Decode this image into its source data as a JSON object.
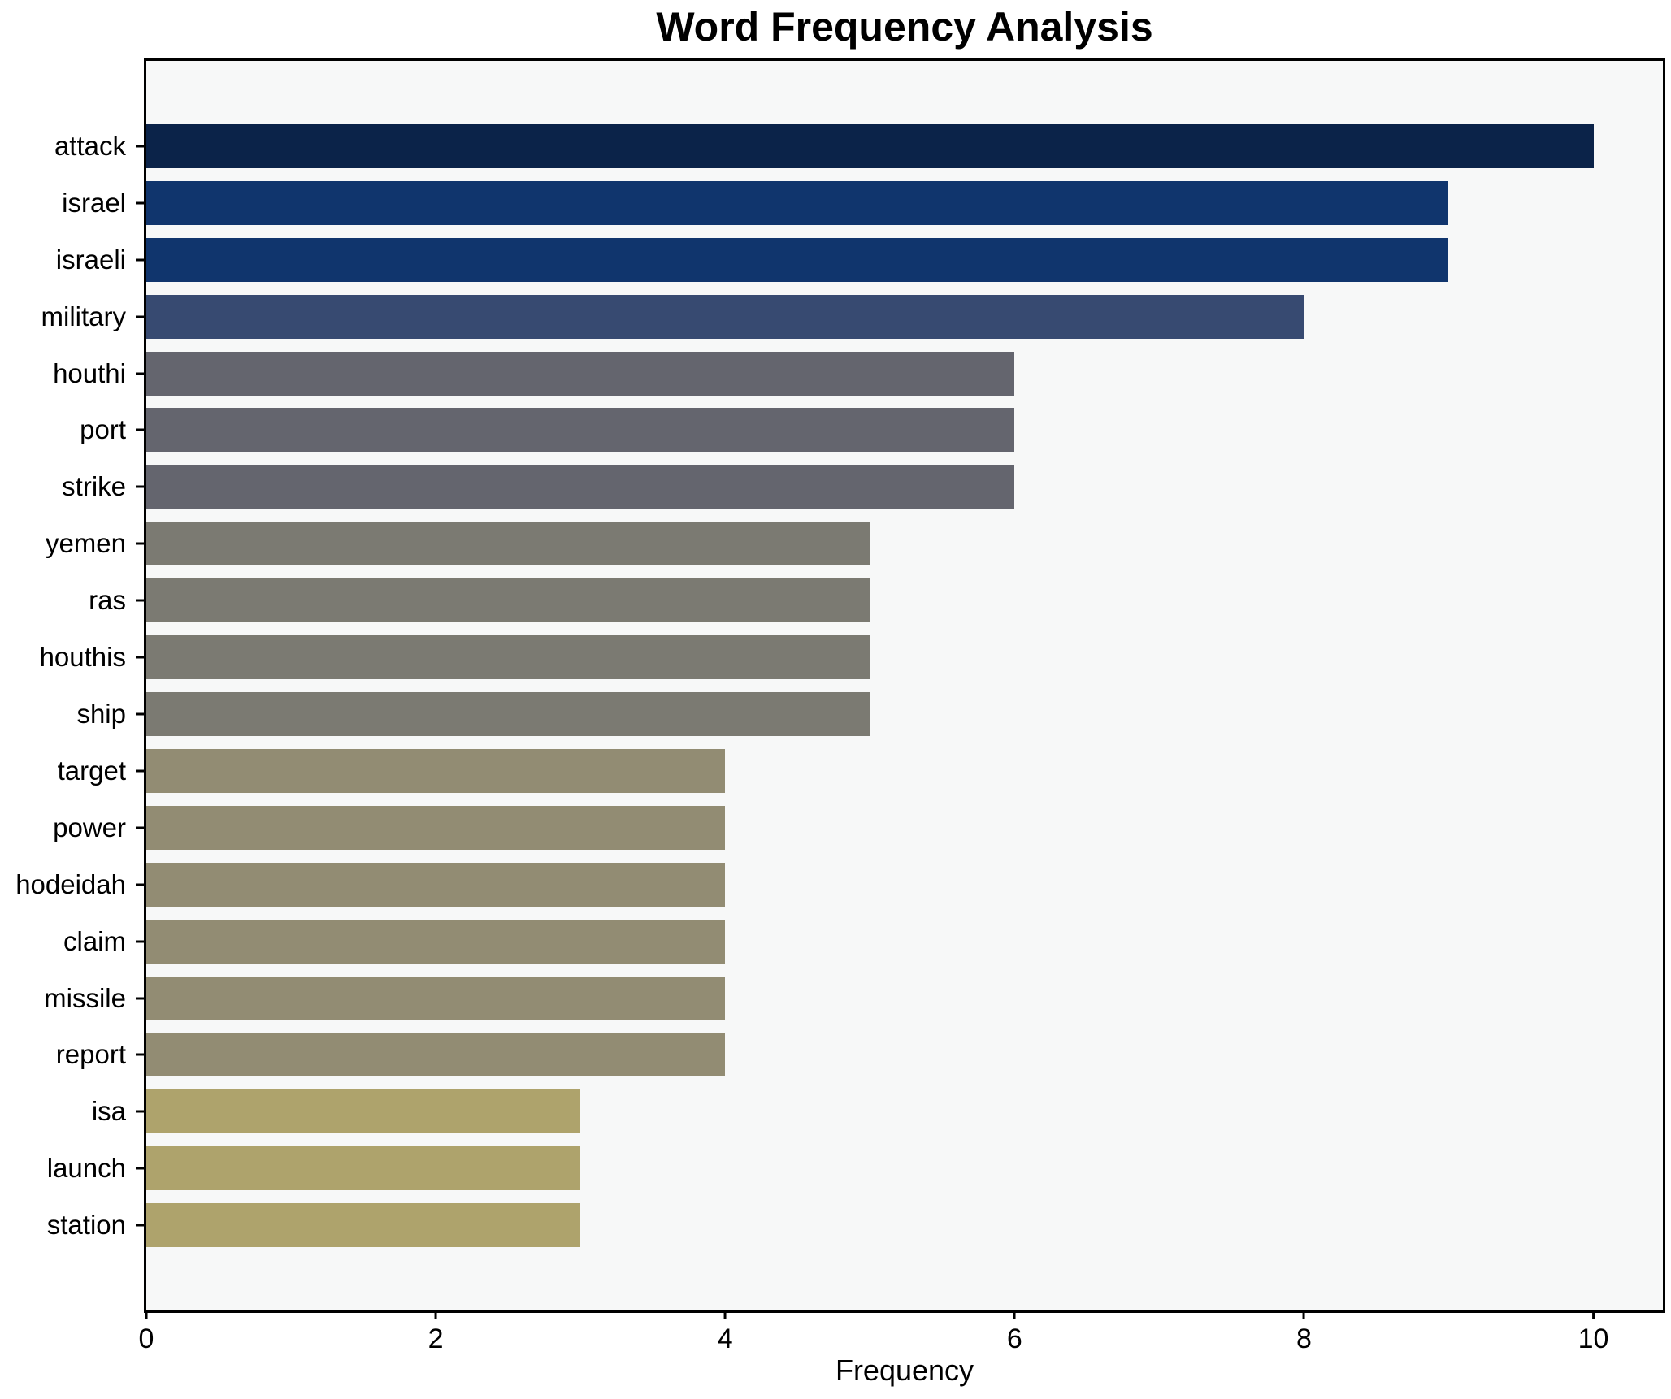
{
  "title": "Word Frequency Analysis",
  "chart_data": {
    "type": "bar",
    "orientation": "horizontal",
    "title": "Word Frequency Analysis",
    "xlabel": "Frequency",
    "ylabel": "",
    "categories": [
      "attack",
      "israel",
      "israeli",
      "military",
      "houthi",
      "port",
      "strike",
      "yemen",
      "ras",
      "houthis",
      "ship",
      "target",
      "power",
      "hodeidah",
      "claim",
      "missile",
      "report",
      "isa",
      "launch",
      "station"
    ],
    "values": [
      10,
      9,
      9,
      8,
      6,
      6,
      6,
      5,
      5,
      5,
      5,
      4,
      4,
      4,
      4,
      4,
      4,
      3,
      3,
      3
    ],
    "bar_colors": [
      "#0b2349",
      "#10356d",
      "#10356d",
      "#374a71",
      "#64656e",
      "#64656e",
      "#64656e",
      "#7b7a72",
      "#7b7a72",
      "#7b7a72",
      "#7b7a72",
      "#928c73",
      "#928c73",
      "#928c73",
      "#928c73",
      "#928c73",
      "#928c73",
      "#aea36c",
      "#aea36c",
      "#aea36c"
    ],
    "xticks": [
      0,
      2,
      4,
      6,
      8,
      10
    ],
    "xlim": [
      0,
      10.48
    ],
    "grid": false,
    "legend_position": "none",
    "plot_background": "#f7f8f8",
    "figure_background": "#ffffff",
    "bar_height_ratio": 0.77
  }
}
